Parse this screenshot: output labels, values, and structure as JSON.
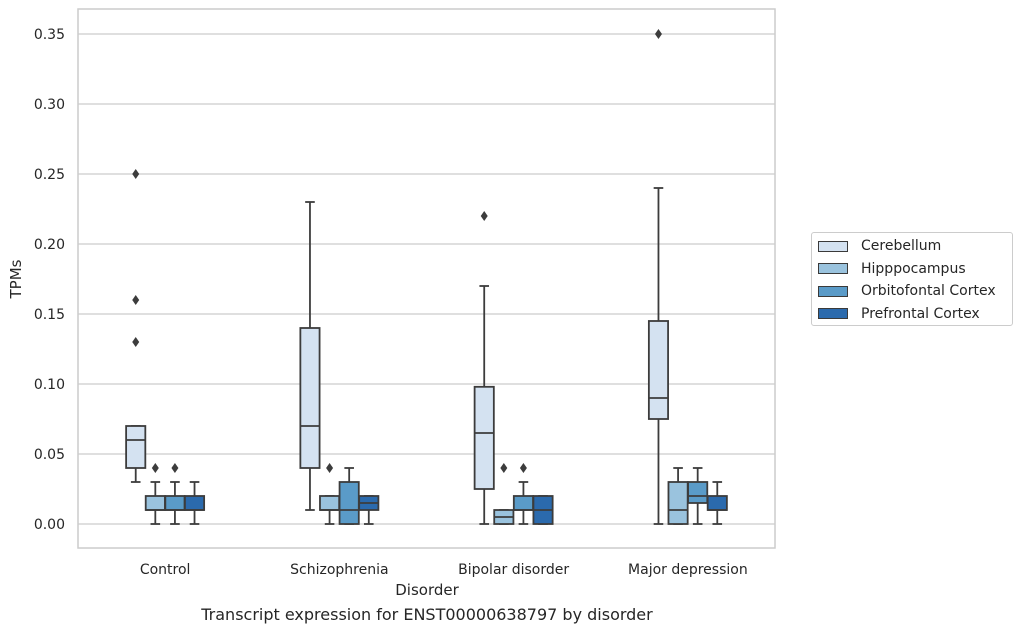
{
  "caption": "Transcript expression for ENST00000638797 by disorder",
  "chart_data": {
    "type": "box",
    "xlabel": "Disorder",
    "ylabel": "TPMs",
    "ylim": [
      -0.017,
      0.367
    ],
    "yticks": [
      0.0,
      0.05,
      0.1,
      0.15,
      0.2,
      0.25,
      0.3,
      0.35
    ],
    "ytick_labels": [
      "0.00",
      "0.05",
      "0.10",
      "0.15",
      "0.20",
      "0.25",
      "0.30",
      "0.35"
    ],
    "grid": "horizontal",
    "legend_position": "right",
    "categories": [
      "Control",
      "Schizophrenia",
      "Bipolar disorder",
      "Major depression"
    ],
    "series": [
      {
        "name": "Cerebellum",
        "color": "#d4e2f1",
        "boxes": [
          {
            "whisker_low": 0.03,
            "q1": 0.04,
            "median": 0.06,
            "q3": 0.07,
            "whisker_high": 0.07,
            "outliers": [
              0.13,
              0.16,
              0.25
            ]
          },
          {
            "whisker_low": 0.01,
            "q1": 0.04,
            "median": 0.07,
            "q3": 0.14,
            "whisker_high": 0.23,
            "outliers": []
          },
          {
            "whisker_low": 0.0,
            "q1": 0.025,
            "median": 0.065,
            "q3": 0.098,
            "whisker_high": 0.17,
            "outliers": [
              0.22
            ]
          },
          {
            "whisker_low": 0.0,
            "q1": 0.075,
            "median": 0.09,
            "q3": 0.145,
            "whisker_high": 0.24,
            "outliers": [
              0.35
            ]
          }
        ]
      },
      {
        "name": "Hipppocampus",
        "color": "#9ac3de",
        "boxes": [
          {
            "whisker_low": 0.0,
            "q1": 0.01,
            "median": 0.01,
            "q3": 0.02,
            "whisker_high": 0.03,
            "outliers": [
              0.04
            ]
          },
          {
            "whisker_low": 0.0,
            "q1": 0.01,
            "median": 0.01,
            "q3": 0.02,
            "whisker_high": 0.02,
            "outliers": [
              0.04
            ]
          },
          {
            "whisker_low": 0.0,
            "q1": 0.0,
            "median": 0.005,
            "q3": 0.01,
            "whisker_high": 0.01,
            "outliers": [
              0.04
            ]
          },
          {
            "whisker_low": 0.0,
            "q1": 0.0,
            "median": 0.01,
            "q3": 0.03,
            "whisker_high": 0.04,
            "outliers": []
          }
        ]
      },
      {
        "name": "Orbitofontal Cortex",
        "color": "#5a9bc8",
        "boxes": [
          {
            "whisker_low": 0.0,
            "q1": 0.01,
            "median": 0.01,
            "q3": 0.02,
            "whisker_high": 0.03,
            "outliers": [
              0.04
            ]
          },
          {
            "whisker_low": 0.0,
            "q1": 0.0,
            "median": 0.01,
            "q3": 0.03,
            "whisker_high": 0.04,
            "outliers": []
          },
          {
            "whisker_low": 0.0,
            "q1": 0.01,
            "median": 0.01,
            "q3": 0.02,
            "whisker_high": 0.03,
            "outliers": [
              0.04
            ]
          },
          {
            "whisker_low": 0.0,
            "q1": 0.015,
            "median": 0.02,
            "q3": 0.03,
            "whisker_high": 0.04,
            "outliers": []
          }
        ]
      },
      {
        "name": "Prefrontal Cortex",
        "color": "#2b6aad",
        "boxes": [
          {
            "whisker_low": 0.0,
            "q1": 0.01,
            "median": 0.01,
            "q3": 0.02,
            "whisker_high": 0.03,
            "outliers": []
          },
          {
            "whisker_low": 0.0,
            "q1": 0.01,
            "median": 0.015,
            "q3": 0.02,
            "whisker_high": 0.02,
            "outliers": []
          },
          {
            "whisker_low": 0.0,
            "q1": 0.0,
            "median": 0.01,
            "q3": 0.02,
            "whisker_high": 0.02,
            "outliers": []
          },
          {
            "whisker_low": 0.0,
            "q1": 0.01,
            "median": 0.01,
            "q3": 0.02,
            "whisker_high": 0.03,
            "outliers": []
          }
        ]
      }
    ]
  }
}
